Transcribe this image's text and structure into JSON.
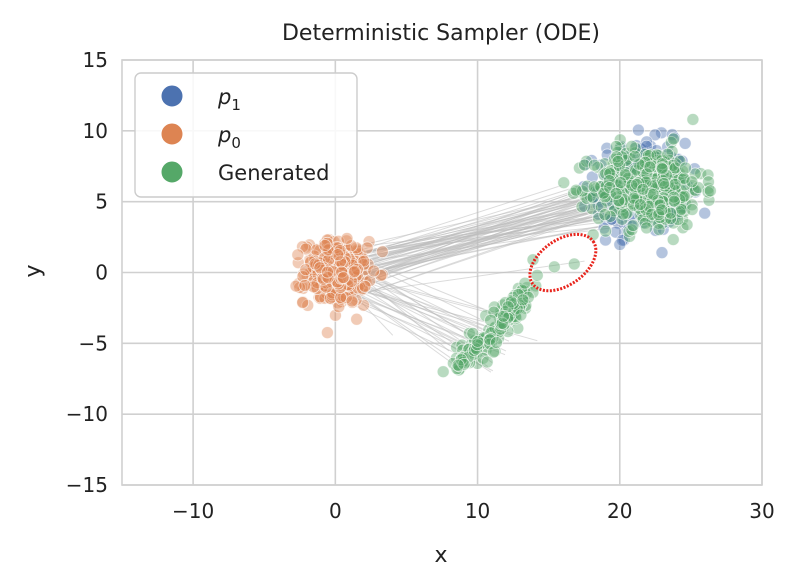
{
  "chart_data": {
    "type": "scatter",
    "title": "Deterministic Sampler (ODE)",
    "xlabel": "x",
    "ylabel": "y",
    "xlim": [
      -15,
      30
    ],
    "ylim": [
      -15,
      15
    ],
    "xticks": [
      -10,
      0,
      10,
      20,
      30
    ],
    "yticks": [
      -15,
      -10,
      -5,
      0,
      5,
      10,
      15
    ],
    "grid": true,
    "legend_position": "top-left",
    "series": [
      {
        "name": "p_1",
        "label_main": "p",
        "label_sub": "1",
        "color": "#4c72b0",
        "center": [
          21.5,
          6.0
        ],
        "spread": [
          1.6,
          1.6
        ],
        "count": 260
      },
      {
        "name": "p_0",
        "label_main": "p",
        "label_sub": "0",
        "color": "#dd8452",
        "center": [
          0.0,
          0.0
        ],
        "spread": [
          1.1,
          1.1
        ],
        "count": 320
      },
      {
        "name": "Generated",
        "label_main": "Generated",
        "label_sub": "",
        "color": "#55a868",
        "clusters": [
          {
            "center": [
              22.0,
              6.0
            ],
            "spread": [
              1.9,
              1.4
            ],
            "count": 420
          },
          {
            "line_from": [
              8.5,
              -6.8
            ],
            "line_to": [
              13.5,
              -1.5
            ],
            "jitter": 0.45,
            "count": 150
          },
          {
            "points": [
              [
                14.2,
                -0.2
              ],
              [
                15.4,
                0.4
              ],
              [
                16.8,
                0.6
              ],
              [
                13.9,
                0.9
              ]
            ]
          }
        ]
      }
    ],
    "trajectories": {
      "color": "#bdbdbd",
      "count": 90,
      "upper_target": [
        20.0,
        5.0
      ],
      "lower_target": [
        10.5,
        -5.0
      ]
    },
    "annotation": {
      "type": "ellipse",
      "color": "#e8241c",
      "center": [
        16.0,
        0.7
      ],
      "radii": [
        2.6,
        1.6
      ],
      "rotation_deg": -35
    }
  }
}
